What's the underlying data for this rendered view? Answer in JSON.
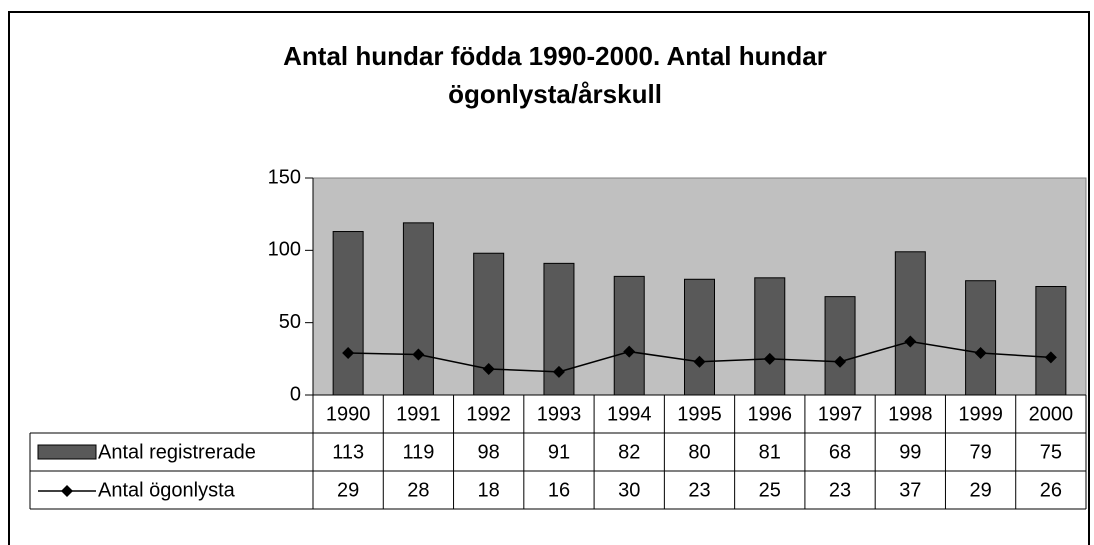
{
  "chart_data": {
    "type": "bar",
    "title": [
      "Antal hundar födda 1990-2000. Antal hundar",
      "ögonlysta/årskull"
    ],
    "categories": [
      "1990",
      "1991",
      "1992",
      "1993",
      "1994",
      "1995",
      "1996",
      "1997",
      "1998",
      "1999",
      "2000"
    ],
    "series": [
      {
        "name": "Antal registrerade",
        "type": "bar",
        "color": "#595959",
        "values": [
          113,
          119,
          98,
          91,
          82,
          80,
          81,
          68,
          99,
          79,
          75
        ]
      },
      {
        "name": "Antal ögonlysta",
        "type": "line",
        "color": "#000000",
        "values": [
          29,
          28,
          18,
          16,
          30,
          23,
          25,
          23,
          37,
          29,
          26
        ]
      }
    ],
    "ylim": [
      0,
      150
    ],
    "yticks": [
      0,
      50,
      100,
      150
    ],
    "grid": false,
    "data_table": true,
    "plot_background": "#c0c0c0"
  }
}
